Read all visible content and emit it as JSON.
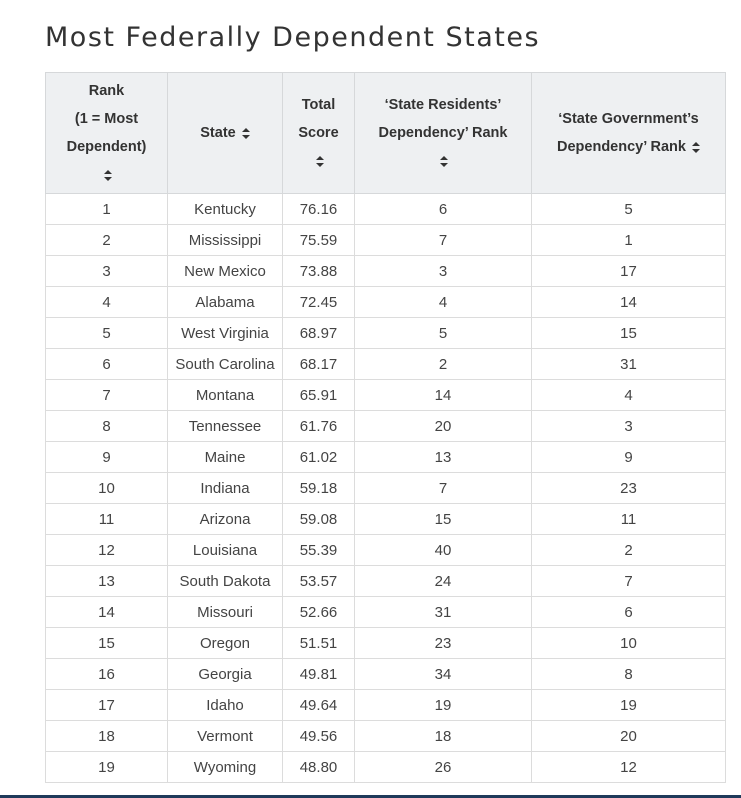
{
  "page": {
    "title": "Most Federally Dependent States"
  },
  "table": {
    "headers": {
      "rank_line1": "Rank",
      "rank_line2": "(1 = Most",
      "rank_line3": "Dependent)",
      "state": "State",
      "score_line1": "Total",
      "score_line2": "Score",
      "residents_line1": "‘State Residents’",
      "residents_line2": "Dependency’ Rank",
      "government_line1": "‘State Government’s",
      "government_line2": "Dependency’ Rank"
    },
    "sort_icon": "sort-updown-icon",
    "rows": [
      {
        "rank": "1",
        "state": "Kentucky",
        "score": "76.16",
        "residents": "6",
        "government": "5"
      },
      {
        "rank": "2",
        "state": "Mississippi",
        "score": "75.59",
        "residents": "7",
        "government": "1"
      },
      {
        "rank": "3",
        "state": "New Mexico",
        "score": "73.88",
        "residents": "3",
        "government": "17"
      },
      {
        "rank": "4",
        "state": "Alabama",
        "score": "72.45",
        "residents": "4",
        "government": "14"
      },
      {
        "rank": "5",
        "state": "West Virginia",
        "score": "68.97",
        "residents": "5",
        "government": "15"
      },
      {
        "rank": "6",
        "state": "South Carolina",
        "score": "68.17",
        "residents": "2",
        "government": "31"
      },
      {
        "rank": "7",
        "state": "Montana",
        "score": "65.91",
        "residents": "14",
        "government": "4"
      },
      {
        "rank": "8",
        "state": "Tennessee",
        "score": "61.76",
        "residents": "20",
        "government": "3"
      },
      {
        "rank": "9",
        "state": "Maine",
        "score": "61.02",
        "residents": "13",
        "government": "9"
      },
      {
        "rank": "10",
        "state": "Indiana",
        "score": "59.18",
        "residents": "7",
        "government": "23"
      },
      {
        "rank": "11",
        "state": "Arizona",
        "score": "59.08",
        "residents": "15",
        "government": "11"
      },
      {
        "rank": "12",
        "state": "Louisiana",
        "score": "55.39",
        "residents": "40",
        "government": "2"
      },
      {
        "rank": "13",
        "state": "South Dakota",
        "score": "53.57",
        "residents": "24",
        "government": "7"
      },
      {
        "rank": "14",
        "state": "Missouri",
        "score": "52.66",
        "residents": "31",
        "government": "6"
      },
      {
        "rank": "15",
        "state": "Oregon",
        "score": "51.51",
        "residents": "23",
        "government": "10"
      },
      {
        "rank": "16",
        "state": "Georgia",
        "score": "49.81",
        "residents": "34",
        "government": "8"
      },
      {
        "rank": "17",
        "state": "Idaho",
        "score": "49.64",
        "residents": "19",
        "government": "19"
      },
      {
        "rank": "18",
        "state": "Vermont",
        "score": "49.56",
        "residents": "18",
        "government": "20"
      },
      {
        "rank": "19",
        "state": "Wyoming",
        "score": "48.80",
        "residents": "26",
        "government": "12"
      }
    ]
  },
  "colors": {
    "header_bg": "#eef0f2",
    "border": "#dcdcdc",
    "text": "#333333",
    "bottom_bar": "#1f3a5a"
  }
}
